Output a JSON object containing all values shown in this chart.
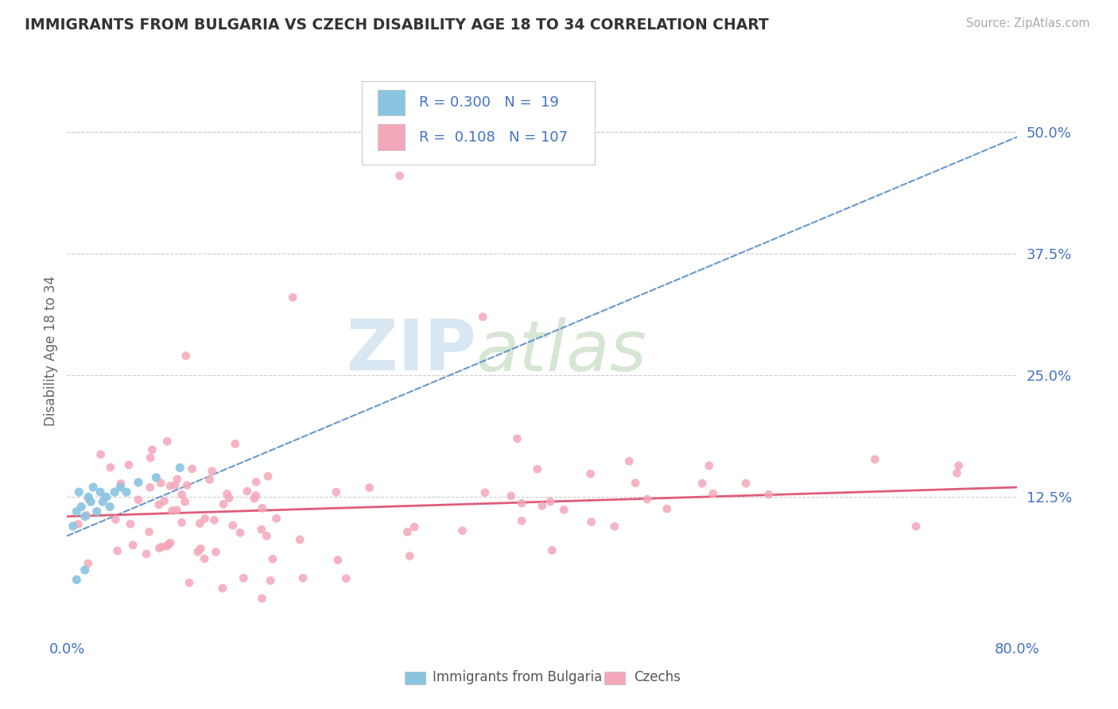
{
  "title": "IMMIGRANTS FROM BULGARIA VS CZECH DISABILITY AGE 18 TO 34 CORRELATION CHART",
  "source": "Source: ZipAtlas.com",
  "ylabel": "Disability Age 18 to 34",
  "xlim": [
    0.0,
    0.8
  ],
  "ylim": [
    -0.02,
    0.57
  ],
  "ytick_values": [
    0.125,
    0.25,
    0.375,
    0.5
  ],
  "legend_label1": "Immigrants from Bulgaria",
  "legend_label2": "Czechs",
  "r1": 0.3,
  "n1": 19,
  "r2": 0.108,
  "n2": 107,
  "color1": "#89C4E1",
  "color2": "#F4A7B9",
  "line_color1": "#6699CC",
  "line_color2": "#E05C7A",
  "watermark_zip": "ZIP",
  "watermark_atlas": "atlas",
  "background_color": "#FFFFFF",
  "grid_color": "#CCCCCC",
  "title_color": "#333333",
  "source_color": "#AAAAAA",
  "tick_color": "#4472C4",
  "ylabel_color": "#666666",
  "legend_text_color": "#4472C4",
  "line1_x0": 0.0,
  "line1_y0": 0.085,
  "line1_x1": 0.8,
  "line1_y1": 0.495,
  "line2_x0": 0.0,
  "line2_y0": 0.105,
  "line2_x1": 0.8,
  "line2_y1": 0.135
}
